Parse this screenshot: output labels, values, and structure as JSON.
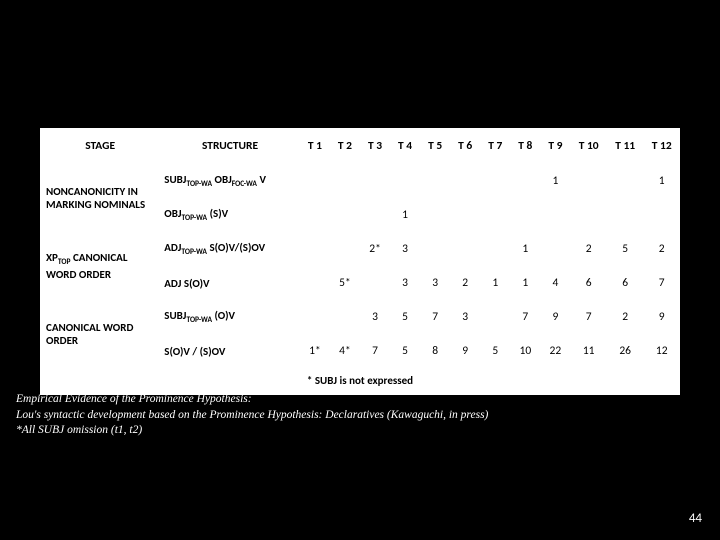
{
  "table": {
    "headers": [
      "STAGE",
      "STRUCTURE",
      "T 1",
      "T 2",
      "T 3",
      "T 4",
      "T 5",
      "T 6",
      "T 7",
      "T 8",
      "T 9",
      "T 10",
      "T 11",
      "T 12"
    ],
    "groups": [
      {
        "stage": "NONCANONICITY IN MARKING NOMINALS",
        "rows": [
          {
            "structure_html": "SUBJ<span class='sub'>TOP-WA</span> OBJ<span class='sub'>FOC-WA</span> V",
            "cells": [
              "",
              "",
              "",
              "",
              "",
              "",
              "",
              "",
              "1",
              "",
              "",
              "1"
            ]
          },
          {
            "structure_html": "OBJ<span class='sub'>TOP-WA</span> (S)V",
            "cells": [
              "",
              "",
              "",
              "1",
              "",
              "",
              "",
              "",
              "",
              "",
              "",
              ""
            ]
          }
        ]
      },
      {
        "stage": "XP<sub class='sub'>TOP</sub> CANONICAL WORD ORDER",
        "rows": [
          {
            "structure_html": "ADJ<span class='sub'>TOP-WA</span> S(O)V/(S)OV",
            "cells": [
              "",
              "",
              "2*",
              "3",
              "",
              "",
              "",
              "1",
              "",
              "2",
              "5",
              "2"
            ]
          },
          {
            "structure_html": "ADJ S(O)V",
            "cells": [
              "",
              "5*",
              "",
              "3",
              "3",
              "2",
              "1",
              "1",
              "4",
              "6",
              "6",
              "7"
            ]
          }
        ]
      },
      {
        "stage": "CANONICAL WORD ORDER",
        "rows": [
          {
            "structure_html": "SUBJ<span class='sub'>TOP-WA</span> (O)V",
            "cells": [
              "",
              "",
              "3",
              "5",
              "7",
              "3",
              "",
              "7",
              "9",
              "7",
              "2",
              "9"
            ]
          },
          {
            "structure_html": "S(O)V / (S)OV",
            "cells": [
              "1*",
              "4*",
              "7",
              "5",
              "8",
              "9",
              "5",
              "10",
              "22",
              "11",
              "26",
              "12"
            ]
          }
        ]
      }
    ],
    "footnote": "* SUBJ is not expressed"
  },
  "caption": {
    "line1": "Empirical Evidence of the Prominence Hypothesis:",
    "line2": "Lou's syntactic development based on the Prominence Hypothesis: Declaratives (Kawaguchi, in press)",
    "line3": "*All SUBJ omission (t1, t2)"
  },
  "page": "44"
}
